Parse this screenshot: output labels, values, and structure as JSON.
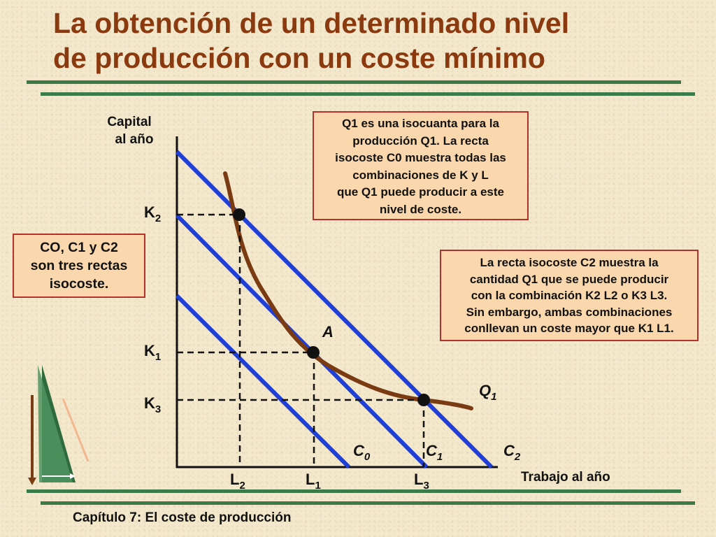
{
  "title": {
    "line1": "La obtención de un determinado nivel",
    "line2": "de producción con un coste mínimo"
  },
  "footer": "Capítulo 7: El coste de producción",
  "colors": {
    "title": "#8b3a10",
    "rule": "#3c7a4a",
    "isocost": "#1f3fd6",
    "isoquant": "#7a3a12",
    "box_fill": "#fbd7ad",
    "box_border": "#b4302a"
  },
  "axes": {
    "y_label_1": "Capital",
    "y_label_2": "al año",
    "x_label": "Trabajo al año"
  },
  "points": {
    "K2": "K",
    "K2_sub": "2",
    "K1": "K",
    "K1_sub": "1",
    "K3": "K",
    "K3_sub": "3",
    "L2": "L",
    "L2_sub": "2",
    "L1": "L",
    "L1_sub": "1",
    "L3": "L",
    "L3_sub": "3",
    "A": "A"
  },
  "lines": {
    "C0": "C",
    "C0_sub": "0",
    "C1": "C",
    "C1_sub": "1",
    "C2": "C",
    "C2_sub": "2",
    "Q1": "Q",
    "Q1_sub": "1"
  },
  "notes": {
    "isoquant_note": [
      "Q1 es una isocuanta para la",
      "producción Q1. La recta",
      "isocoste C0 muestra todas las",
      "combinaciones de  K y L",
      "que Q1 puede producir a este",
      "nivel de coste."
    ],
    "three_lines_note": [
      "CO,  C1 y C2",
      "son tres rectas",
      "isocoste."
    ],
    "c2_note": [
      "La recta isocoste C2 muestra la",
      "cantidad Q1 que se puede producir",
      "con la combinación K2 L2 o K3 L3.",
      "Sin embargo, ambas combinaciones",
      "conllevan un coste mayor que K1 L1."
    ]
  }
}
